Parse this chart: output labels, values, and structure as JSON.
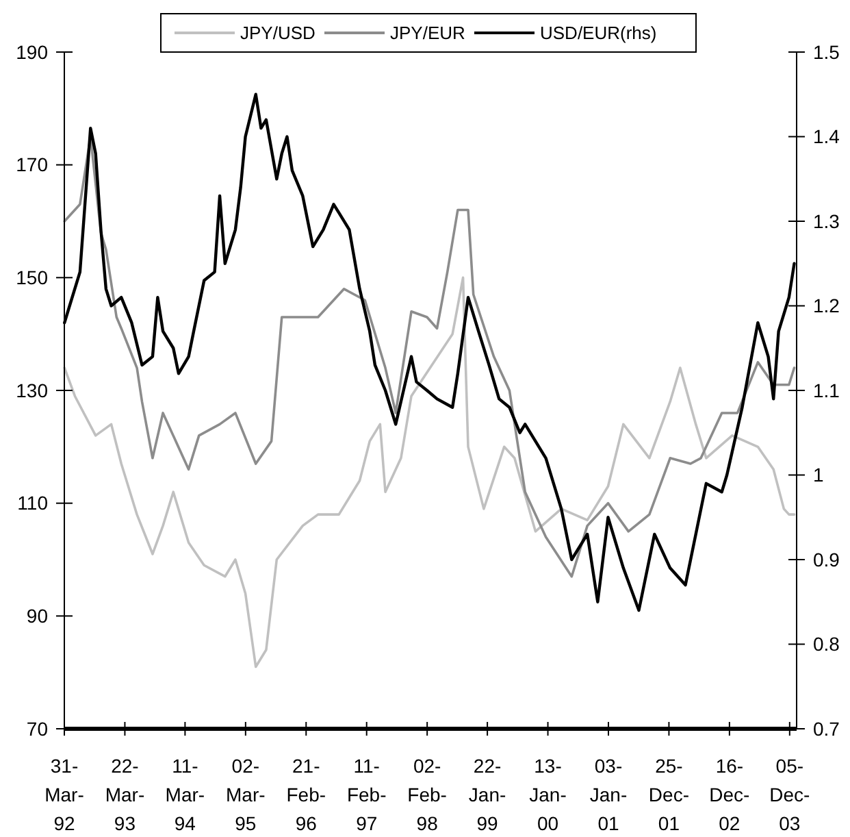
{
  "chart_data": {
    "type": "line",
    "xlim": [
      "1992-03-31",
      "2004-01-15"
    ],
    "xticks": [
      {
        "value": "1992-03-31",
        "label": "31-Mar-92"
      },
      {
        "value": "1993-03-22",
        "label": "22-Mar-93"
      },
      {
        "value": "1994-03-11",
        "label": "11-Mar-94"
      },
      {
        "value": "1995-03-02",
        "label": "02-Mar-95"
      },
      {
        "value": "1996-02-21",
        "label": "21-Feb-96"
      },
      {
        "value": "1997-02-11",
        "label": "11-Feb-97"
      },
      {
        "value": "1998-02-02",
        "label": "02-Feb-98"
      },
      {
        "value": "1999-01-22",
        "label": "22-Jan-99"
      },
      {
        "value": "2000-01-13",
        "label": "13-Jan-00"
      },
      {
        "value": "2001-01-03",
        "label": "03-Jan-01"
      },
      {
        "value": "2001-12-25",
        "label": "25-Dec-01"
      },
      {
        "value": "2002-12-16",
        "label": "16-Dec-02"
      },
      {
        "value": "2003-12-05",
        "label": "05-Dec-03"
      }
    ],
    "ylim": [
      70,
      190
    ],
    "yticks": [
      70,
      90,
      110,
      130,
      150,
      170,
      190
    ],
    "y2lim": [
      0.7,
      1.5
    ],
    "y2ticks": [
      0.7,
      0.8,
      0.9,
      1,
      1.1,
      1.2,
      1.3,
      1.4,
      1.5
    ],
    "legend": "top",
    "grid": false,
    "marker": "none",
    "line_style": "solid",
    "series": [
      {
        "name": "JPY/USD",
        "color": "#c0c0c0",
        "x": [
          "1992-04",
          "1992-06",
          "1992-10",
          "1993-01",
          "1993-03",
          "1993-06",
          "1993-09",
          "1993-11",
          "1994-01",
          "1994-04",
          "1994-07",
          "1994-11",
          "1995-01",
          "1995-03",
          "1995-05",
          "1995-07",
          "1995-09",
          "1996-02",
          "1996-05",
          "1996-09",
          "1997-01",
          "1997-03",
          "1997-05",
          "1997-06",
          "1997-09",
          "1997-11",
          "1998-07",
          "1998-09",
          "1998-10",
          "1999-01",
          "1999-05",
          "1999-07",
          "1999-11",
          "2000-04",
          "2000-09",
          "2001-01",
          "2001-04",
          "2001-09",
          "2002-01",
          "2002-03",
          "2002-06",
          "2002-08",
          "2003-01",
          "2003-06",
          "2003-09",
          "2003-11",
          "2003-12",
          "2004-01"
        ],
        "values": [
          134,
          129,
          122,
          124,
          117,
          108,
          101,
          106,
          112,
          103,
          99,
          97,
          100,
          94,
          81,
          84,
          100,
          106,
          108,
          108,
          114,
          121,
          124,
          112,
          118,
          129,
          140,
          150,
          120,
          109,
          120,
          118,
          105,
          109,
          107,
          113,
          124,
          118,
          128,
          134,
          124,
          118,
          122,
          120,
          116,
          109,
          108,
          108
        ]
      },
      {
        "name": "JPY/EUR",
        "color": "#8c8c8c",
        "x": [
          "1992-04",
          "1992-07",
          "1992-09",
          "1992-11",
          "1992-12",
          "1993-02",
          "1993-03",
          "1993-06",
          "1993-07",
          "1993-09",
          "1993-11",
          "1994-04",
          "1994-06",
          "1994-10",
          "1995-01",
          "1995-05",
          "1995-08",
          "1995-10",
          "1996-01",
          "1996-05",
          "1996-10",
          "1997-02",
          "1997-06",
          "1997-08",
          "1997-11",
          "1998-02",
          "1998-04",
          "1998-06",
          "1998-08",
          "1998-10",
          "1998-11",
          "1999-03",
          "1999-06",
          "1999-09",
          "2000-01",
          "2000-06",
          "2000-09",
          "2001-01",
          "2001-05",
          "2001-09",
          "2002-01",
          "2002-05",
          "2002-07",
          "2002-11",
          "2003-02",
          "2003-06",
          "2003-09",
          "2003-12",
          "2004-01"
        ],
        "values": [
          160,
          163,
          175,
          158,
          155,
          143,
          141,
          134,
          128,
          118,
          126,
          116,
          122,
          124,
          126,
          117,
          121,
          143,
          143,
          143,
          148,
          146,
          134,
          126,
          144,
          143,
          141,
          151,
          162,
          162,
          147,
          136,
          130,
          112,
          104,
          97,
          106,
          110,
          105,
          108,
          118,
          117,
          118,
          126,
          126,
          135,
          131,
          131,
          134
        ]
      },
      {
        "name": "USD/EUR(rhs)",
        "color": "#000000",
        "axis": "y2",
        "x": [
          "1992-04",
          "1992-05",
          "1992-07",
          "1992-09",
          "1992-10",
          "1992-11",
          "1992-12",
          "1993-01",
          "1993-03",
          "1993-05",
          "1993-07",
          "1993-09",
          "1993-10",
          "1993-11",
          "1994-01",
          "1994-02",
          "1994-04",
          "1994-05",
          "1994-07",
          "1994-09",
          "1994-10",
          "1994-11",
          "1995-01",
          "1995-02",
          "1995-03",
          "1995-05",
          "1995-06",
          "1995-07",
          "1995-09",
          "1995-10",
          "1995-11",
          "1995-12",
          "1996-02",
          "1996-04",
          "1996-06",
          "1996-08",
          "1996-09",
          "1996-11",
          "1997-01",
          "1997-03",
          "1997-04",
          "1997-06",
          "1997-08",
          "1997-11",
          "1997-12",
          "1998-02",
          "1998-04",
          "1998-07",
          "1998-08",
          "1998-10",
          "1998-12",
          "1999-02",
          "1999-04",
          "1999-06",
          "1999-08",
          "1999-09",
          "2000-01",
          "2000-04",
          "2000-06",
          "2000-09",
          "2000-11",
          "2001-01",
          "2001-04",
          "2001-07",
          "2001-10",
          "2002-01",
          "2002-04",
          "2002-06",
          "2002-08",
          "2002-11",
          "2002-12",
          "2003-03",
          "2003-06",
          "2003-08",
          "2003-09",
          "2003-10",
          "2003-12",
          "2004-01"
        ],
        "values": [
          1.18,
          1.2,
          1.24,
          1.41,
          1.38,
          1.29,
          1.22,
          1.2,
          1.21,
          1.18,
          1.13,
          1.14,
          1.21,
          1.17,
          1.15,
          1.12,
          1.14,
          1.17,
          1.23,
          1.24,
          1.33,
          1.25,
          1.29,
          1.34,
          1.4,
          1.45,
          1.41,
          1.42,
          1.35,
          1.38,
          1.4,
          1.36,
          1.33,
          1.27,
          1.29,
          1.32,
          1.31,
          1.29,
          1.22,
          1.17,
          1.13,
          1.1,
          1.06,
          1.14,
          1.11,
          1.1,
          1.09,
          1.08,
          1.12,
          1.21,
          1.17,
          1.13,
          1.09,
          1.08,
          1.05,
          1.06,
          1.02,
          0.96,
          0.9,
          0.93,
          0.85,
          0.95,
          0.89,
          0.84,
          0.93,
          0.89,
          0.87,
          0.93,
          0.99,
          0.98,
          1,
          1.08,
          1.18,
          1.14,
          1.09,
          1.17,
          1.21,
          1.25
        ]
      }
    ]
  }
}
